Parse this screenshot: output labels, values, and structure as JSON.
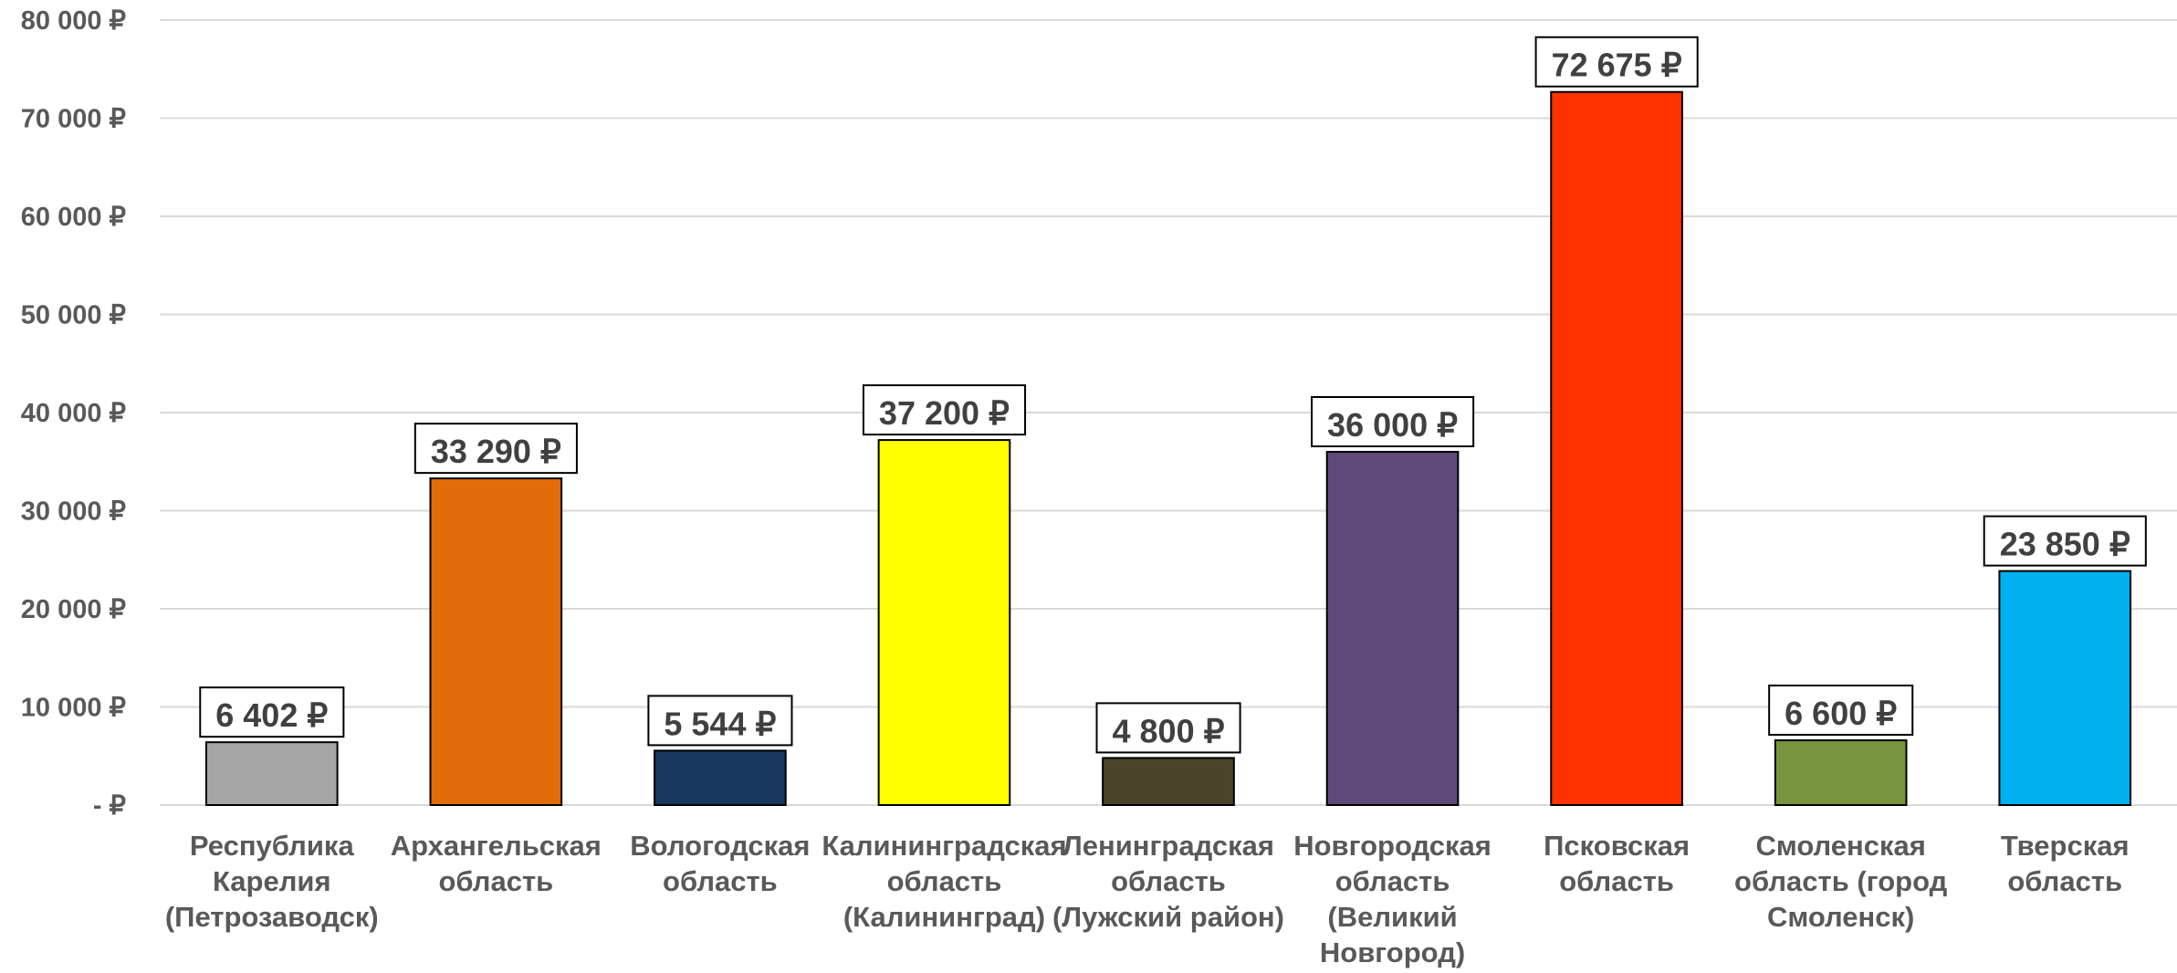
{
  "chart_data": {
    "type": "bar",
    "title": "",
    "xlabel": "",
    "ylabel": "",
    "ylim": [
      0,
      80000
    ],
    "grid": true,
    "legend": "none",
    "yticks": [
      {
        "value": 0,
        "label": "-   ₽"
      },
      {
        "value": 10000,
        "label": "10 000 ₽"
      },
      {
        "value": 20000,
        "label": "20 000 ₽"
      },
      {
        "value": 30000,
        "label": "30 000 ₽"
      },
      {
        "value": 40000,
        "label": "40 000 ₽"
      },
      {
        "value": 50000,
        "label": "50 000 ₽"
      },
      {
        "value": 60000,
        "label": "60 000 ₽"
      },
      {
        "value": 70000,
        "label": "70 000 ₽"
      },
      {
        "value": 80000,
        "label": "80 000 ₽"
      }
    ],
    "categories": [
      {
        "lines": [
          "Республика",
          "Карелия",
          "(Петрозаводск)"
        ]
      },
      {
        "lines": [
          "Архангельская",
          "область"
        ]
      },
      {
        "lines": [
          "Вологодская",
          "область"
        ]
      },
      {
        "lines": [
          "Калининградская",
          "область",
          "(Калининград)"
        ]
      },
      {
        "lines": [
          "Ленинградская",
          "область",
          "(Лужский район)"
        ]
      },
      {
        "lines": [
          "Новгородская",
          "область",
          "(Великий",
          "Новгород)"
        ]
      },
      {
        "lines": [
          "Псковская",
          "область"
        ]
      },
      {
        "lines": [
          "Смоленская",
          "область (город",
          "Смоленск)"
        ]
      },
      {
        "lines": [
          "Тверская",
          "область"
        ]
      }
    ],
    "values": [
      6402,
      33290,
      5544,
      37200,
      4800,
      36000,
      72675,
      6600,
      23850
    ],
    "data_labels": [
      "6 402 ₽",
      "33 290 ₽",
      "5 544 ₽",
      "37 200 ₽",
      "4 800 ₽",
      "36 000 ₽",
      "72 675 ₽",
      "6 600 ₽",
      "23 850 ₽"
    ],
    "colors": [
      "#A5A5A5",
      "#E36C0A",
      "#17375E",
      "#FFFF00",
      "#4A452A",
      "#5F497A",
      "#FF3300",
      "#77933C",
      "#00B0F0"
    ],
    "grid_color": "#D9D9D9",
    "text_color": "#595959"
  }
}
